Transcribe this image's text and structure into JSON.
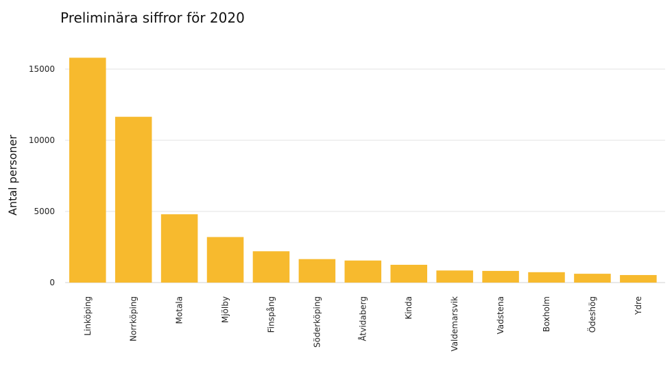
{
  "chart_data": {
    "type": "bar",
    "title": "Preliminära siffror för 2020",
    "xlabel": "",
    "ylabel": "Antal personer",
    "categories": [
      "Linköping",
      "Norrköping",
      "Motala",
      "Mjölby",
      "Finspång",
      "Söderköping",
      "Åtvidaberg",
      "Kinda",
      "Valdemarsvik",
      "Vadstena",
      "Boxholm",
      "Ödeshög",
      "Ydre"
    ],
    "values": [
      15800,
      11650,
      4800,
      3200,
      2200,
      1650,
      1550,
      1250,
      850,
      820,
      730,
      620,
      530
    ],
    "ylim": [
      0,
      17000
    ],
    "yticks": [
      0,
      5000,
      10000,
      15000
    ],
    "grid": true,
    "bar_color": "#F7BA2E",
    "grid_color": "#e3e3e3"
  }
}
